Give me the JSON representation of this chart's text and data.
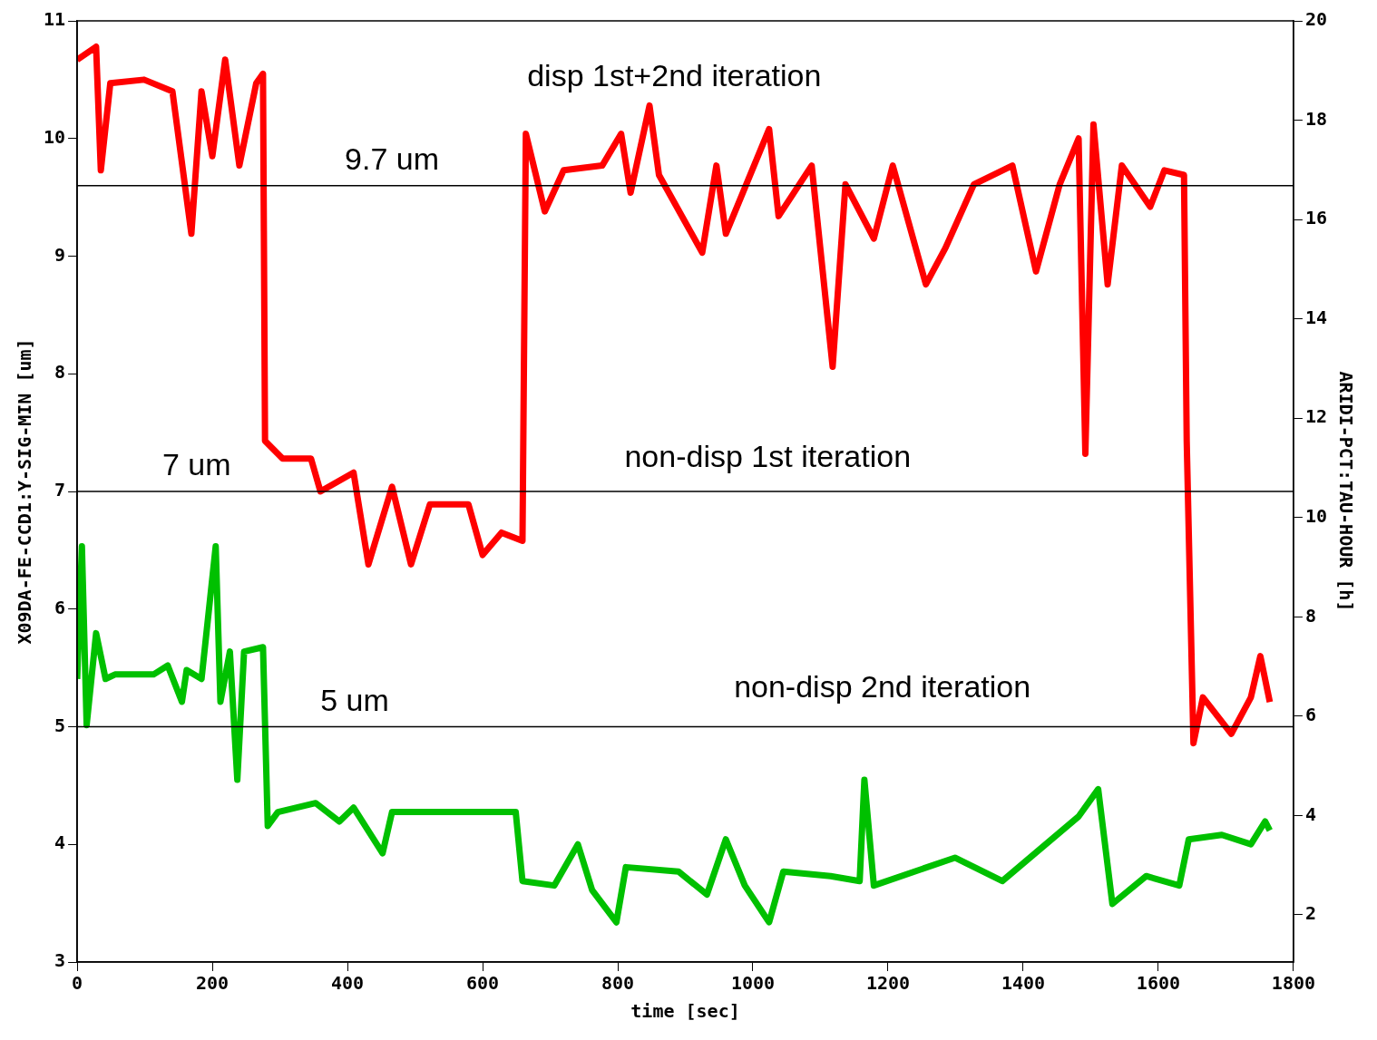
{
  "chart_data": {
    "type": "line",
    "xlabel": "time [sec]",
    "ylabel": "X09DA-FE-CCD1:Y-SIG-MIN [um]",
    "y2label": "ARIDI-PCT:TAU-HOUR [h]",
    "xlim": [
      0,
      1800
    ],
    "xticks": [
      0,
      200,
      400,
      600,
      800,
      1000,
      1200,
      1400,
      1600,
      1800
    ],
    "ylim": [
      3,
      11
    ],
    "yticks": [
      3,
      4,
      5,
      6,
      7,
      8,
      9,
      10,
      11
    ],
    "y2lim": [
      1.05,
      20
    ],
    "y2ticks": [
      2,
      4,
      6,
      8,
      10,
      12,
      14,
      16,
      18,
      20
    ],
    "grid": false,
    "legend": false,
    "marker": "none",
    "line_style": "solid",
    "series": [
      {
        "color": "#ff0000",
        "axis": "y",
        "x": [
          0,
          28,
          35,
          49,
          99,
          141,
          169,
          184,
          200,
          219,
          240,
          265,
          275,
          278,
          304,
          346,
          360,
          409,
          431,
          466,
          494,
          522,
          579,
          600,
          628,
          659,
          664,
          692,
          720,
          777,
          805,
          819,
          847,
          861,
          925,
          946,
          960,
          1024,
          1038,
          1087,
          1118,
          1137,
          1179,
          1207,
          1256,
          1285,
          1327,
          1384,
          1419,
          1454,
          1482,
          1492,
          1504,
          1525,
          1546,
          1588,
          1609,
          1638,
          1642,
          1652,
          1666,
          1708,
          1737,
          1751,
          1765
        ],
        "values": [
          10.67,
          10.78,
          9.73,
          10.47,
          10.5,
          10.4,
          9.19,
          10.4,
          9.85,
          10.67,
          9.77,
          10.47,
          10.55,
          7.43,
          7.28,
          7.28,
          7.0,
          7.16,
          6.38,
          7.04,
          6.38,
          6.89,
          6.89,
          6.46,
          6.65,
          6.58,
          10.04,
          9.38,
          9.73,
          9.77,
          10.04,
          9.54,
          10.28,
          9.69,
          9.03,
          9.77,
          9.19,
          10.08,
          9.34,
          9.77,
          8.06,
          9.61,
          9.15,
          9.77,
          8.76,
          9.07,
          9.61,
          9.77,
          8.87,
          9.61,
          10.0,
          7.32,
          10.12,
          8.76,
          9.77,
          9.42,
          9.73,
          9.69,
          7.43,
          4.86,
          5.25,
          4.94,
          5.25,
          5.6,
          5.21
        ]
      },
      {
        "color": "#00c000",
        "axis": "y2",
        "x": [
          0,
          7,
          14,
          28,
          42,
          56,
          113,
          134,
          155,
          162,
          184,
          205,
          212,
          226,
          237,
          247,
          275,
          282,
          297,
          353,
          388,
          409,
          452,
          466,
          649,
          659,
          706,
          741,
          762,
          798,
          812,
          890,
          932,
          960,
          988,
          1024,
          1045,
          1115,
          1158,
          1165,
          1179,
          1299,
          1369,
          1482,
          1511,
          1532,
          1582,
          1631,
          1645,
          1694,
          1737,
          1758,
          1765
        ],
        "values": [
          6.75,
          9.42,
          5.82,
          7.67,
          6.75,
          6.84,
          6.84,
          7.02,
          6.29,
          6.93,
          6.75,
          9.42,
          6.29,
          7.3,
          4.72,
          7.3,
          7.39,
          3.79,
          4.07,
          4.25,
          3.88,
          4.16,
          3.24,
          4.07,
          4.07,
          2.68,
          2.59,
          3.42,
          2.5,
          1.85,
          2.96,
          2.87,
          2.41,
          3.52,
          2.59,
          1.85,
          2.87,
          2.78,
          2.68,
          4.72,
          2.59,
          3.15,
          2.68,
          3.98,
          4.53,
          2.22,
          2.78,
          2.59,
          3.52,
          3.61,
          3.42,
          3.88,
          3.7
        ]
      }
    ],
    "ref_lines": [
      {
        "axis": "y",
        "value": 9.6,
        "label": "9.7 um",
        "color": "#000000"
      },
      {
        "axis": "y",
        "value": 7,
        "label": "7 um",
        "color": "#000000"
      },
      {
        "axis": "y",
        "value": 5,
        "label": "5 um",
        "color": "#000000"
      }
    ],
    "annotations": [
      "disp 1st+2nd iteration",
      "non-disp 1st iteration",
      "non-disp 2nd iteration"
    ]
  }
}
